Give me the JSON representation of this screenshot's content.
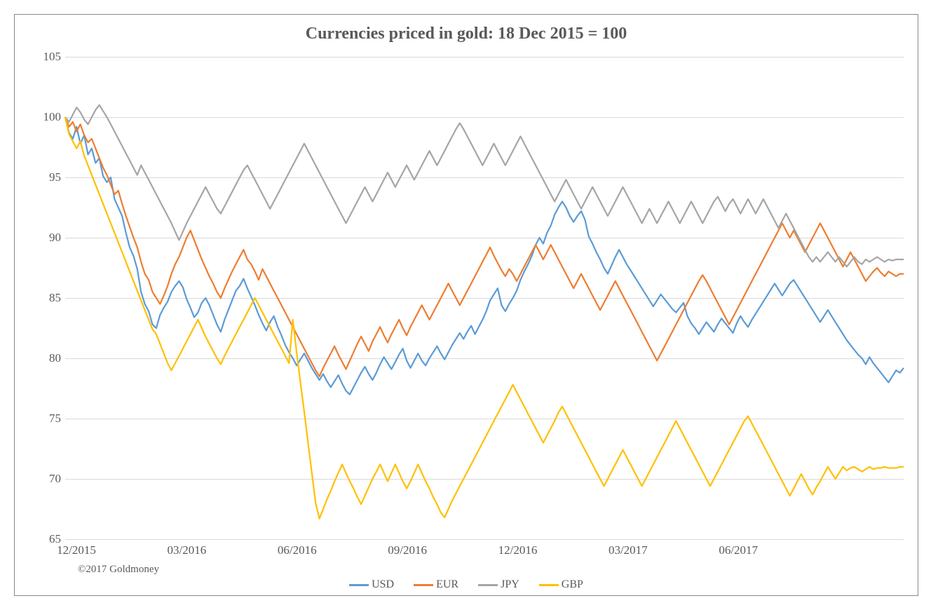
{
  "chart": {
    "type": "line",
    "title": "Currencies priced in gold: 18 Dec 2015 = 100",
    "title_fontsize": 24,
    "title_color": "#595959",
    "background_color": "#ffffff",
    "border_color": "#888888",
    "grid_color": "#d9d9d9",
    "axis_label_color": "#595959",
    "axis_label_fontsize": 17,
    "ylim": [
      65,
      105
    ],
    "ytick_step": 5,
    "yticks": [
      65,
      70,
      75,
      80,
      85,
      90,
      95,
      100,
      105
    ],
    "x_categories": [
      "12/2015",
      "03/2016",
      "06/2016",
      "09/2016",
      "12/2016",
      "03/2017",
      "06/2017"
    ],
    "line_width": 2.2,
    "series": [
      {
        "name": "USD",
        "color": "#5b9bd5",
        "values": [
          100,
          98.7,
          98.2,
          99.2,
          97.8,
          98.5,
          96.9,
          97.4,
          96.2,
          96.6,
          95.1,
          94.6,
          95.0,
          93.2,
          92.5,
          91.8,
          90.4,
          89.2,
          88.5,
          87.4,
          85.5,
          84.5,
          83.9,
          82.8,
          82.5,
          83.6,
          84.2,
          84.7,
          85.5,
          86.0,
          86.4,
          85.9,
          84.9,
          84.2,
          83.4,
          83.8,
          84.6,
          85.0,
          84.4,
          83.6,
          82.8,
          82.2,
          83.2,
          84.0,
          84.8,
          85.6,
          86.0,
          86.6,
          85.8,
          85.1,
          84.4,
          83.6,
          82.9,
          82.3,
          83.0,
          83.5,
          82.6,
          81.9,
          81.1,
          80.5,
          80.0,
          79.4,
          79.9,
          80.4,
          79.8,
          79.2,
          78.7,
          78.2,
          78.7,
          78.1,
          77.6,
          78.1,
          78.6,
          77.9,
          77.3,
          77.0,
          77.6,
          78.2,
          78.8,
          79.3,
          78.7,
          78.2,
          78.8,
          79.5,
          80.1,
          79.6,
          79.1,
          79.7,
          80.3,
          80.8,
          79.8,
          79.2,
          79.8,
          80.4,
          79.8,
          79.4,
          80.0,
          80.5,
          81.0,
          80.4,
          79.9,
          80.5,
          81.1,
          81.6,
          82.1,
          81.6,
          82.2,
          82.7,
          82.0,
          82.6,
          83.2,
          83.9,
          84.8,
          85.3,
          85.8,
          84.4,
          83.9,
          84.5,
          85.0,
          85.6,
          86.5,
          87.2,
          87.8,
          88.5,
          89.4,
          90.0,
          89.5,
          90.4,
          91.0,
          91.9,
          92.5,
          93.0,
          92.5,
          91.8,
          91.3,
          91.8,
          92.2,
          91.5,
          90.1,
          89.5,
          88.8,
          88.2,
          87.5,
          87.0,
          87.7,
          88.4,
          89.0,
          88.4,
          87.8,
          87.3,
          86.8,
          86.3,
          85.8,
          85.3,
          84.8,
          84.3,
          84.8,
          85.3,
          84.9,
          84.5,
          84.1,
          83.8,
          84.2,
          84.6,
          83.5,
          82.9,
          82.5,
          82.0,
          82.5,
          83.0,
          82.6,
          82.2,
          82.8,
          83.3,
          82.9,
          82.5,
          82.1,
          82.9,
          83.5,
          83.0,
          82.6,
          83.2,
          83.7,
          84.2,
          84.7,
          85.2,
          85.7,
          86.2,
          85.7,
          85.2,
          85.7,
          86.2,
          86.5,
          86.0,
          85.5,
          85.0,
          84.5,
          84.0,
          83.5,
          83.0,
          83.5,
          84.0,
          83.5,
          83.0,
          82.5,
          82.0,
          81.5,
          81.1,
          80.7,
          80.3,
          80.0,
          79.5,
          80.1,
          79.6,
          79.2,
          78.8,
          78.4,
          78.0,
          78.5,
          79.0,
          78.8,
          79.2
        ]
      },
      {
        "name": "EUR",
        "color": "#ed7d31",
        "values": [
          100,
          99.2,
          99.6,
          98.8,
          99.4,
          98.5,
          97.9,
          98.2,
          97.4,
          96.6,
          95.8,
          95.2,
          94.4,
          93.6,
          93.9,
          92.8,
          91.8,
          90.9,
          90.0,
          89.2,
          88.0,
          87.0,
          86.5,
          85.5,
          85.0,
          84.5,
          85.2,
          86.0,
          87.0,
          87.8,
          88.4,
          89.2,
          90.0,
          90.6,
          89.8,
          89.0,
          88.2,
          87.5,
          86.8,
          86.2,
          85.5,
          85.0,
          85.8,
          86.5,
          87.2,
          87.8,
          88.4,
          89.0,
          88.2,
          87.8,
          87.2,
          86.5,
          87.4,
          86.8,
          86.2,
          85.6,
          85.0,
          84.4,
          83.8,
          83.2,
          82.6,
          82.0,
          81.4,
          80.8,
          80.2,
          79.6,
          79.0,
          78.5,
          79.2,
          79.8,
          80.4,
          81.0,
          80.3,
          79.7,
          79.1,
          79.8,
          80.5,
          81.2,
          81.8,
          81.2,
          80.6,
          81.4,
          82.0,
          82.6,
          81.9,
          81.3,
          82.0,
          82.6,
          83.2,
          82.5,
          81.9,
          82.6,
          83.2,
          83.8,
          84.4,
          83.8,
          83.2,
          83.8,
          84.4,
          85.0,
          85.6,
          86.2,
          85.6,
          85.0,
          84.4,
          85.0,
          85.6,
          86.2,
          86.8,
          87.4,
          88.0,
          88.6,
          89.2,
          88.5,
          87.9,
          87.3,
          86.8,
          87.4,
          87.0,
          86.4,
          87.0,
          87.6,
          88.2,
          88.8,
          89.4,
          88.8,
          88.2,
          88.8,
          89.4,
          88.8,
          88.2,
          87.6,
          87.0,
          86.4,
          85.8,
          86.4,
          87.0,
          86.4,
          85.8,
          85.2,
          84.6,
          84.0,
          84.6,
          85.2,
          85.8,
          86.4,
          85.8,
          85.2,
          84.6,
          84.0,
          83.4,
          82.8,
          82.2,
          81.6,
          81.0,
          80.4,
          79.8,
          80.4,
          81.0,
          81.6,
          82.2,
          82.8,
          83.4,
          84.0,
          84.6,
          85.2,
          85.8,
          86.4,
          86.9,
          86.4,
          85.8,
          85.2,
          84.6,
          84.0,
          83.4,
          82.8,
          83.4,
          84.0,
          84.6,
          85.2,
          85.8,
          86.4,
          87.0,
          87.6,
          88.2,
          88.8,
          89.4,
          90.0,
          90.6,
          91.2,
          90.6,
          90.0,
          90.6,
          90.0,
          89.4,
          88.8,
          89.4,
          90.0,
          90.6,
          91.2,
          90.6,
          90.0,
          89.4,
          88.8,
          88.2,
          87.6,
          88.2,
          88.8,
          88.2,
          87.6,
          87.0,
          86.4,
          86.8,
          87.2,
          87.5,
          87.1,
          86.8,
          87.2,
          87.0,
          86.8,
          87.0,
          87.0
        ]
      },
      {
        "name": "JPY",
        "color": "#a5a5a5",
        "values": [
          100,
          99.6,
          100.2,
          100.8,
          100.4,
          99.8,
          99.4,
          100.0,
          100.6,
          101.0,
          100.5,
          100.0,
          99.4,
          98.8,
          98.2,
          97.6,
          97.0,
          96.4,
          95.8,
          95.2,
          96.0,
          95.4,
          94.8,
          94.2,
          93.6,
          93.0,
          92.4,
          91.8,
          91.2,
          90.5,
          89.8,
          90.5,
          91.2,
          91.8,
          92.4,
          93.0,
          93.6,
          94.2,
          93.6,
          93.0,
          92.4,
          92.0,
          92.6,
          93.2,
          93.8,
          94.4,
          95.0,
          95.6,
          96.0,
          95.4,
          94.8,
          94.2,
          93.6,
          93.0,
          92.4,
          93.0,
          93.6,
          94.2,
          94.8,
          95.4,
          96.0,
          96.6,
          97.2,
          97.8,
          97.2,
          96.6,
          96.0,
          95.4,
          94.8,
          94.2,
          93.6,
          93.0,
          92.4,
          91.8,
          91.2,
          91.8,
          92.4,
          93.0,
          93.6,
          94.2,
          93.6,
          93.0,
          93.6,
          94.2,
          94.8,
          95.4,
          94.8,
          94.2,
          94.8,
          95.4,
          96.0,
          95.4,
          94.8,
          95.4,
          96.0,
          96.6,
          97.2,
          96.6,
          96.0,
          96.6,
          97.2,
          97.8,
          98.4,
          99.0,
          99.5,
          99.0,
          98.4,
          97.8,
          97.2,
          96.6,
          96.0,
          96.6,
          97.2,
          97.8,
          97.2,
          96.6,
          96.0,
          96.6,
          97.2,
          97.8,
          98.4,
          97.8,
          97.2,
          96.6,
          96.0,
          95.4,
          94.8,
          94.2,
          93.6,
          93.0,
          93.6,
          94.2,
          94.8,
          94.2,
          93.6,
          93.0,
          92.4,
          93.0,
          93.6,
          94.2,
          93.6,
          93.0,
          92.4,
          91.8,
          92.4,
          93.0,
          93.6,
          94.2,
          93.6,
          93.0,
          92.4,
          91.8,
          91.2,
          91.8,
          92.4,
          91.8,
          91.2,
          91.8,
          92.4,
          93.0,
          92.4,
          91.8,
          91.2,
          91.8,
          92.4,
          93.0,
          92.4,
          91.8,
          91.2,
          91.8,
          92.4,
          93.0,
          93.4,
          92.8,
          92.2,
          92.8,
          93.2,
          92.6,
          92.0,
          92.6,
          93.2,
          92.6,
          92.0,
          92.6,
          93.2,
          92.6,
          92.0,
          91.4,
          90.8,
          91.4,
          92.0,
          91.4,
          90.8,
          90.2,
          89.6,
          89.0,
          88.4,
          88.0,
          88.4,
          88.0,
          88.4,
          88.8,
          88.4,
          88.0,
          88.4,
          88.0,
          87.6,
          88.0,
          88.4,
          88.0,
          87.8,
          88.2,
          88.0,
          88.2,
          88.4,
          88.2,
          88.0,
          88.2,
          88.1,
          88.2,
          88.2,
          88.2
        ]
      },
      {
        "name": "GBP",
        "color": "#ffc000",
        "values": [
          100,
          98.6,
          98.0,
          97.4,
          98.0,
          96.8,
          96.0,
          95.2,
          94.4,
          93.6,
          92.8,
          92.0,
          91.2,
          90.4,
          89.6,
          88.8,
          88.0,
          87.2,
          86.4,
          85.6,
          84.8,
          84.0,
          83.2,
          82.4,
          82.0,
          81.2,
          80.4,
          79.6,
          79.0,
          79.6,
          80.2,
          80.8,
          81.4,
          82.0,
          82.6,
          83.2,
          82.5,
          81.8,
          81.2,
          80.6,
          80.0,
          79.5,
          80.2,
          80.8,
          81.4,
          82.0,
          82.6,
          83.2,
          83.8,
          84.4,
          85.0,
          84.4,
          83.8,
          83.2,
          82.6,
          82.0,
          81.4,
          80.8,
          80.2,
          79.6,
          83.2,
          80.5,
          78.0,
          75.6,
          73.0,
          70.5,
          68.0,
          66.7,
          67.5,
          68.3,
          69.0,
          69.8,
          70.5,
          71.2,
          70.5,
          69.8,
          69.2,
          68.5,
          67.9,
          68.6,
          69.3,
          70.0,
          70.6,
          71.2,
          70.5,
          69.8,
          70.5,
          71.2,
          70.5,
          69.8,
          69.2,
          69.8,
          70.5,
          71.2,
          70.5,
          69.8,
          69.2,
          68.5,
          67.9,
          67.2,
          66.8,
          67.5,
          68.2,
          68.8,
          69.4,
          70.0,
          70.6,
          71.2,
          71.8,
          72.4,
          73.0,
          73.6,
          74.2,
          74.8,
          75.4,
          76.0,
          76.6,
          77.2,
          77.8,
          77.2,
          76.6,
          76.0,
          75.4,
          74.8,
          74.2,
          73.6,
          73.0,
          73.6,
          74.2,
          74.8,
          75.5,
          76.0,
          75.4,
          74.8,
          74.2,
          73.6,
          73.0,
          72.4,
          71.8,
          71.2,
          70.6,
          70.0,
          69.4,
          70.0,
          70.6,
          71.2,
          71.8,
          72.4,
          71.8,
          71.2,
          70.6,
          70.0,
          69.4,
          70.0,
          70.6,
          71.2,
          71.8,
          72.4,
          73.0,
          73.6,
          74.2,
          74.8,
          74.2,
          73.6,
          73.0,
          72.4,
          71.8,
          71.2,
          70.6,
          70.0,
          69.4,
          70.0,
          70.6,
          71.2,
          71.8,
          72.4,
          73.0,
          73.6,
          74.2,
          74.8,
          75.2,
          74.6,
          74.0,
          73.4,
          72.8,
          72.2,
          71.6,
          71.0,
          70.4,
          69.8,
          69.2,
          68.6,
          69.2,
          69.8,
          70.4,
          69.8,
          69.2,
          68.7,
          69.3,
          69.8,
          70.4,
          71.0,
          70.5,
          70.0,
          70.5,
          71.0,
          70.7,
          70.9,
          71.0,
          70.8,
          70.6,
          70.8,
          71.0,
          70.8,
          70.9,
          70.9,
          71.0,
          70.9,
          70.9,
          70.9,
          71.0,
          71.0
        ]
      }
    ],
    "legend_position": "bottom",
    "legend_fontsize": 16,
    "copyright": "©2017 Goldmoney",
    "copyright_fontsize": 15
  }
}
